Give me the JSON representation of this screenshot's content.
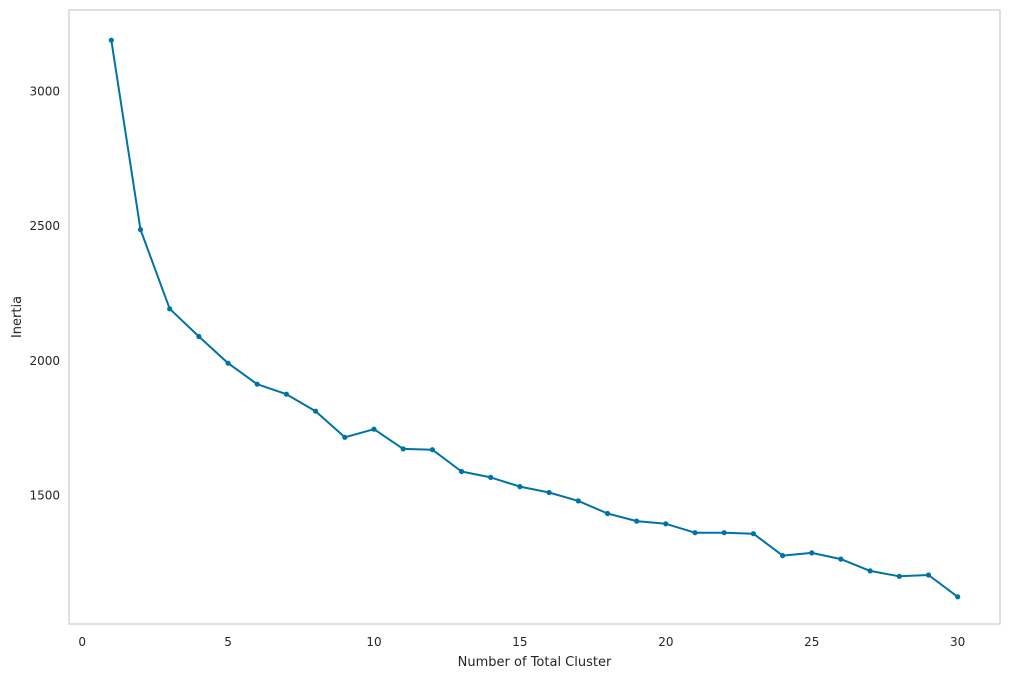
{
  "chart_data": {
    "type": "line",
    "title": "",
    "xlabel": "Number of Total Cluster",
    "ylabel": "Inertia",
    "x": [
      1,
      2,
      3,
      4,
      5,
      6,
      7,
      8,
      9,
      10,
      11,
      12,
      13,
      14,
      15,
      16,
      17,
      18,
      19,
      20,
      21,
      22,
      23,
      24,
      25,
      26,
      27,
      28,
      29,
      30
    ],
    "series": [
      {
        "values": [
          3190,
          2487,
          2193,
          2090,
          1991,
          1913,
          1876,
          1813,
          1716,
          1746,
          1673,
          1670,
          1589,
          1567,
          1533,
          1511,
          1480,
          1433,
          1405,
          1395,
          1362,
          1362,
          1358,
          1277,
          1287,
          1264,
          1220,
          1200,
          1205,
          1124
        ],
        "color": "#0072a8"
      }
    ],
    "xlim": [
      -0.45,
      31.45
    ],
    "ylim": [
      1023,
      3302
    ],
    "xticks": [
      "0",
      "5",
      "10",
      "15",
      "20",
      "25",
      "30"
    ],
    "yticks": [
      "1500",
      "2000",
      "2500",
      "3000"
    ],
    "grid": false,
    "legend": "none"
  }
}
